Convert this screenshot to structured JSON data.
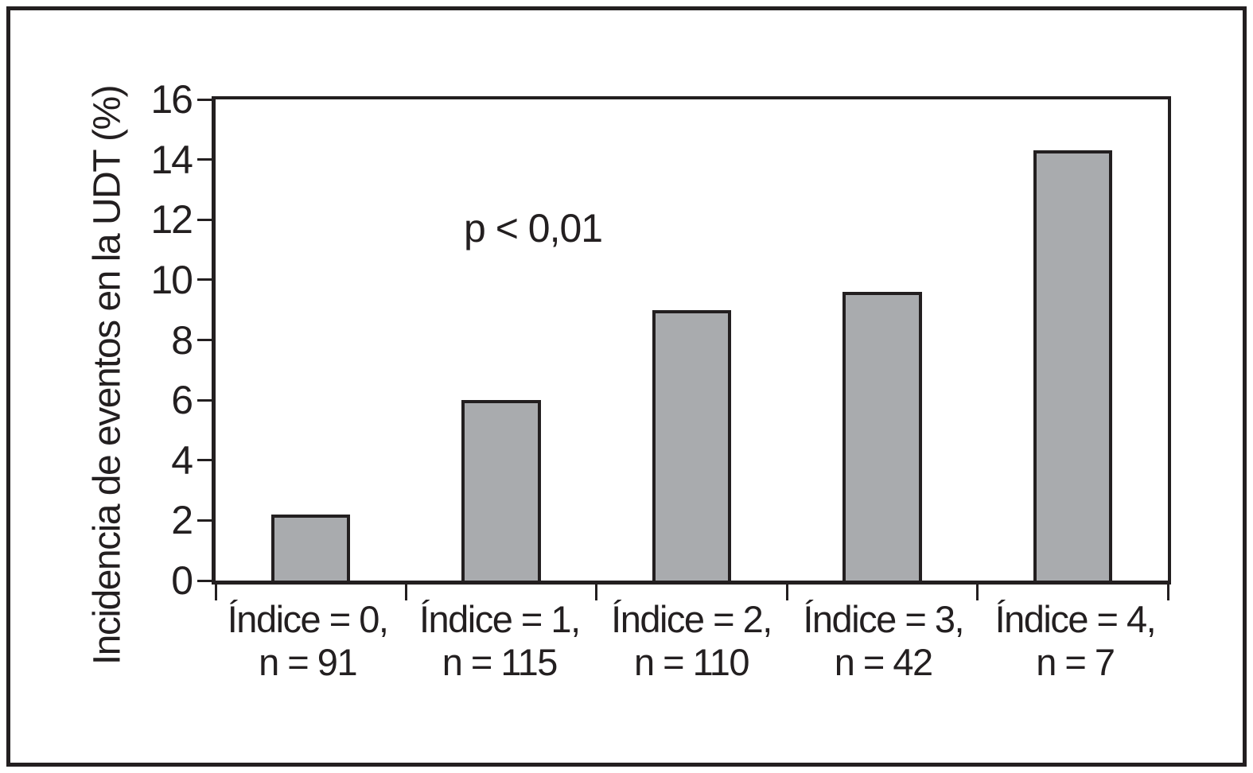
{
  "figure": {
    "background": "#ffffff",
    "frame_color": "#231f20"
  },
  "chart_data": {
    "type": "bar",
    "title": "",
    "xlabel": "",
    "ylabel": "Incidencia de eventos en la UDT (%)",
    "annotation": "p < 0,01",
    "categories": [
      {
        "line1": "Índice = 0,",
        "line2": "n = 91"
      },
      {
        "line1": "Índice = 1,",
        "line2": "n = 115"
      },
      {
        "line1": "Índice = 2,",
        "line2": "n = 110"
      },
      {
        "line1": "Índice = 3,",
        "line2": "n = 42"
      },
      {
        "line1": "Índice = 4,",
        "line2": "n = 7"
      }
    ],
    "values": [
      2.2,
      6.0,
      9.0,
      9.6,
      14.3
    ],
    "ylim": [
      0,
      16
    ],
    "yticks": [
      0,
      2,
      4,
      6,
      8,
      10,
      12,
      14,
      16
    ],
    "grid": false,
    "legend": "none",
    "bar_color": "#a9abae",
    "bar_border_color": "#231f20",
    "axis_color": "#231f20"
  }
}
